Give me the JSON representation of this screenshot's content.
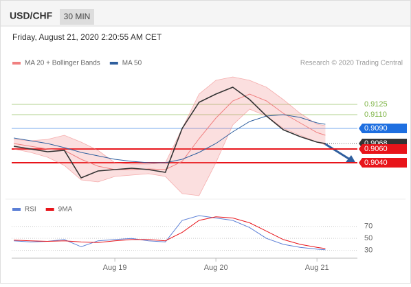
{
  "header": {
    "symbol": "USD/CHF",
    "interval": "30 MIN",
    "timestamp": "Friday, August 21, 2020 2:20:55 AM CET"
  },
  "chart_data": [
    {
      "type": "line",
      "source": "Research © 2020 Trading Central",
      "x": [
        -24,
        -20,
        -16,
        -12,
        -8,
        -4,
        0,
        4,
        8,
        12,
        16,
        20,
        24,
        28,
        32,
        36,
        40,
        44,
        48,
        50
      ],
      "xlim": [
        -24.5,
        57.6
      ],
      "ylim": [
        0.899,
        0.918
      ],
      "series": [
        {
          "name": "MA 20 + Bollinger Bands",
          "color": "#f08080",
          "values": [
            0.9068,
            0.9064,
            0.906,
            0.9058,
            0.9045,
            0.9035,
            0.903,
            0.903,
            0.9031,
            0.903,
            0.9042,
            0.9075,
            0.9105,
            0.913,
            0.914,
            0.913,
            0.9112,
            0.9098,
            0.9084,
            0.908
          ],
          "upper": [
            0.9074,
            0.9072,
            0.9074,
            0.908,
            0.907,
            0.9058,
            0.904,
            0.9038,
            0.9038,
            0.904,
            0.909,
            0.914,
            0.916,
            0.9165,
            0.916,
            0.915,
            0.9132,
            0.9112,
            0.9096,
            0.9094
          ],
          "lower": [
            0.906,
            0.9055,
            0.9048,
            0.9036,
            0.9015,
            0.9012,
            0.902,
            0.9022,
            0.9024,
            0.902,
            0.8995,
            0.8992,
            0.904,
            0.9095,
            0.9118,
            0.9108,
            0.909,
            0.908,
            0.907,
            0.9066
          ]
        },
        {
          "name": "MA 50",
          "color": "#2f5f9e",
          "values": [
            0.9076,
            0.9072,
            0.9068,
            0.9062,
            0.9055,
            0.905,
            0.9045,
            0.9042,
            0.904,
            0.904,
            0.9045,
            0.9055,
            0.9068,
            0.9085,
            0.91,
            0.9108,
            0.911,
            0.9106,
            0.9098,
            0.9096
          ]
        },
        {
          "color": "#333333",
          "values": [
            0.9064,
            0.906,
            0.9056,
            0.9058,
            0.9018,
            0.9028,
            0.903,
            0.9032,
            0.903,
            0.9026,
            0.909,
            0.9128,
            0.914,
            0.915,
            0.9132,
            0.9108,
            0.9088,
            0.9078,
            0.907,
            0.9068
          ]
        }
      ],
      "levels": [
        {
          "value": 0.9125,
          "label": "0.9125",
          "color": "#7cb342",
          "box": false
        },
        {
          "value": 0.911,
          "label": "0.9110",
          "color": "#7cb342",
          "box": false
        },
        {
          "value": 0.909,
          "label": "0.9090",
          "color": "#1e6fe0",
          "box": true
        },
        {
          "value": 0.9068,
          "label": "0.9068",
          "color": "#333333",
          "box": true
        },
        {
          "value": 0.906,
          "label": "0.9060",
          "color": "#e8141a",
          "box": true
        },
        {
          "value": 0.904,
          "label": "0.9040",
          "color": "#e8141a",
          "box": true
        }
      ]
    },
    {
      "type": "line",
      "x": [
        -24,
        -20,
        -16,
        -12,
        -8,
        -4,
        0,
        4,
        8,
        12,
        16,
        20,
        24,
        28,
        32,
        36,
        40,
        44,
        48,
        50
      ],
      "xlim": [
        -24.5,
        57.6
      ],
      "ylim": [
        17,
        104
      ],
      "xticks": [
        {
          "value": 0,
          "label": "Aug 19"
        },
        {
          "value": 24,
          "label": "Aug 20"
        },
        {
          "value": 48,
          "label": "Aug 21"
        }
      ],
      "yticks": [
        70,
        50,
        30
      ],
      "series": [
        {
          "name": "RSI",
          "color": "#5b7fd6",
          "values": [
            46,
            44,
            45,
            48,
            36,
            46,
            48,
            50,
            46,
            44,
            80,
            88,
            84,
            80,
            68,
            50,
            40,
            35,
            32,
            31
          ]
        },
        {
          "name": "9MA",
          "color": "#e8141a",
          "values": [
            47,
            46,
            45,
            46,
            44,
            43,
            46,
            48,
            48,
            46,
            60,
            80,
            86,
            84,
            76,
            62,
            48,
            40,
            35,
            33
          ]
        }
      ]
    }
  ]
}
